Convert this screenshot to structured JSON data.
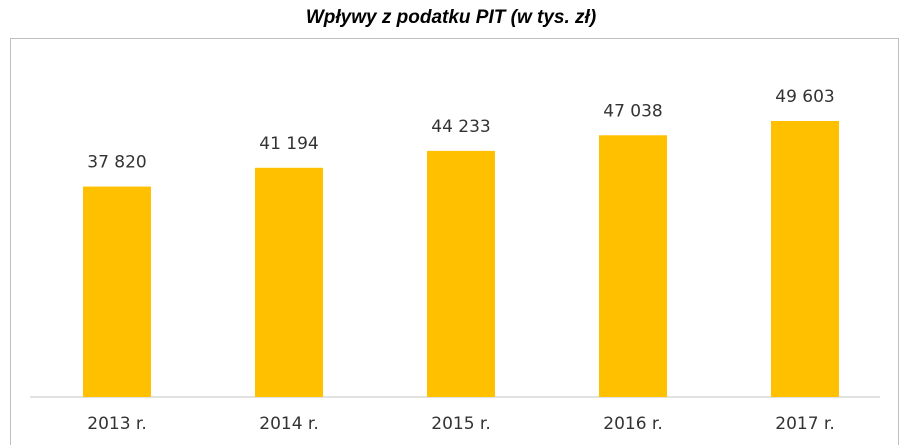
{
  "chart_data": {
    "type": "bar",
    "title": "Wpływy z podatku PIT (w tys. zł)",
    "categories": [
      "2013 r.",
      "2014 r.",
      "2015 r.",
      "2016 r.",
      "2017 r."
    ],
    "values": [
      37820,
      41194,
      44233,
      47038,
      49603
    ],
    "value_labels": [
      "37 820",
      "41 194",
      "44 233",
      "47 038",
      "49 603"
    ],
    "color": "#ffc000"
  }
}
